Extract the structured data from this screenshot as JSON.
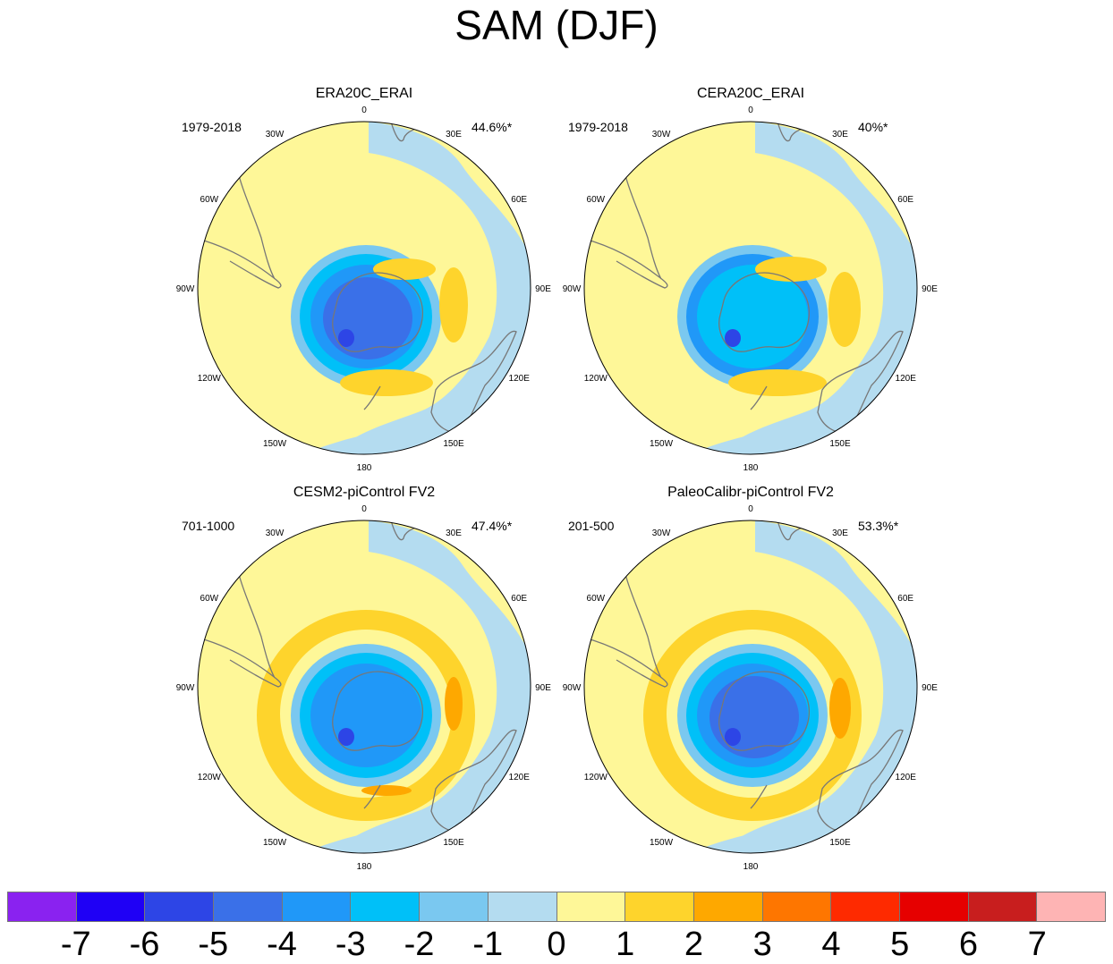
{
  "title": "SAM (DJF)",
  "panels": [
    {
      "title": "ERA20C_ERAI",
      "period": "1979-2018",
      "variance": "44.6%*"
    },
    {
      "title": "CERA20C_ERAI",
      "period": "1979-2018",
      "variance": "40%*"
    },
    {
      "title": "CESM2-piControl FV2",
      "period": "701-1000",
      "variance": "47.4%*"
    },
    {
      "title": "PaleoCalibr-piControl FV2",
      "period": "201-500",
      "variance": "53.3%*"
    }
  ],
  "lon_labels": [
    "0",
    "30E",
    "60E",
    "90E",
    "120E",
    "150E",
    "180",
    "150W",
    "120W",
    "90W",
    "60W",
    "30W"
  ],
  "colorbar": {
    "ticks": [
      "-7",
      "-6",
      "-5",
      "-4",
      "-3",
      "-2",
      "-1",
      "0",
      "1",
      "2",
      "3",
      "4",
      "5",
      "6",
      "7"
    ],
    "colors": [
      "#8a22f0",
      "#1f00f5",
      "#2d45e6",
      "#3a70e8",
      "#2098f8",
      "#00c0f8",
      "#7ac8f0",
      "#b4dcf0",
      "#fef798",
      "#fed42c",
      "#fea800",
      "#fe7600",
      "#fe2a00",
      "#e60000",
      "#c81e1e",
      "#feb4b4"
    ]
  },
  "colors": {
    "land": "#777777"
  }
}
